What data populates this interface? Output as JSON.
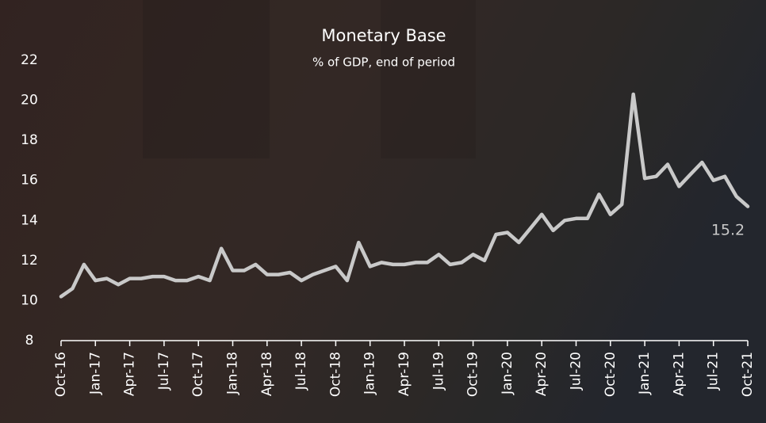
{
  "chart_data": {
    "type": "line",
    "title": "Monetary Base",
    "subtitle": "% of GDP, end of period",
    "categories": [
      "Oct-16",
      null,
      null,
      "Jan-17",
      null,
      null,
      "Apr-17",
      null,
      null,
      "Jul-17",
      null,
      null,
      "Oct-17",
      null,
      null,
      "Jan-18",
      null,
      null,
      "Apr-18",
      null,
      null,
      "Jul-18",
      null,
      null,
      "Oct-18",
      null,
      null,
      "Jan-19",
      null,
      null,
      "Apr-19",
      null,
      null,
      "Jul-19",
      null,
      null,
      "Oct-19",
      null,
      null,
      "Jan-20",
      null,
      null,
      "Apr-20",
      null,
      null,
      "Jul-20",
      null,
      null,
      "Oct-20",
      null,
      null,
      "Jan-21",
      null,
      null,
      "Apr-21",
      null,
      null,
      "Jul-21",
      null,
      null,
      "Oct-21"
    ],
    "series": [
      {
        "name": "Monetary Base",
        "color": "#c9c9c9",
        "values": [
          10.2,
          10.6,
          11.8,
          11.0,
          11.1,
          10.8,
          11.1,
          11.1,
          11.2,
          11.2,
          11.0,
          11.0,
          11.2,
          11.0,
          12.6,
          11.5,
          11.5,
          11.8,
          11.3,
          11.3,
          11.4,
          11.0,
          11.3,
          11.5,
          11.7,
          11.0,
          12.9,
          11.7,
          11.9,
          11.8,
          11.8,
          11.9,
          11.9,
          12.3,
          11.8,
          11.9,
          12.3,
          12.0,
          13.3,
          13.4,
          12.9,
          13.6,
          14.3,
          13.5,
          14.0,
          14.1,
          14.1,
          15.3,
          14.3,
          14.8,
          20.3,
          16.1,
          16.2,
          16.8,
          15.7,
          16.3,
          16.9,
          16.0,
          16.2,
          15.2,
          14.7
        ]
      }
    ],
    "annotation": "15.2",
    "ylim": [
      8,
      22
    ],
    "yticks": [
      8,
      10,
      12,
      14,
      16,
      18,
      20,
      22
    ],
    "grid": false
  }
}
